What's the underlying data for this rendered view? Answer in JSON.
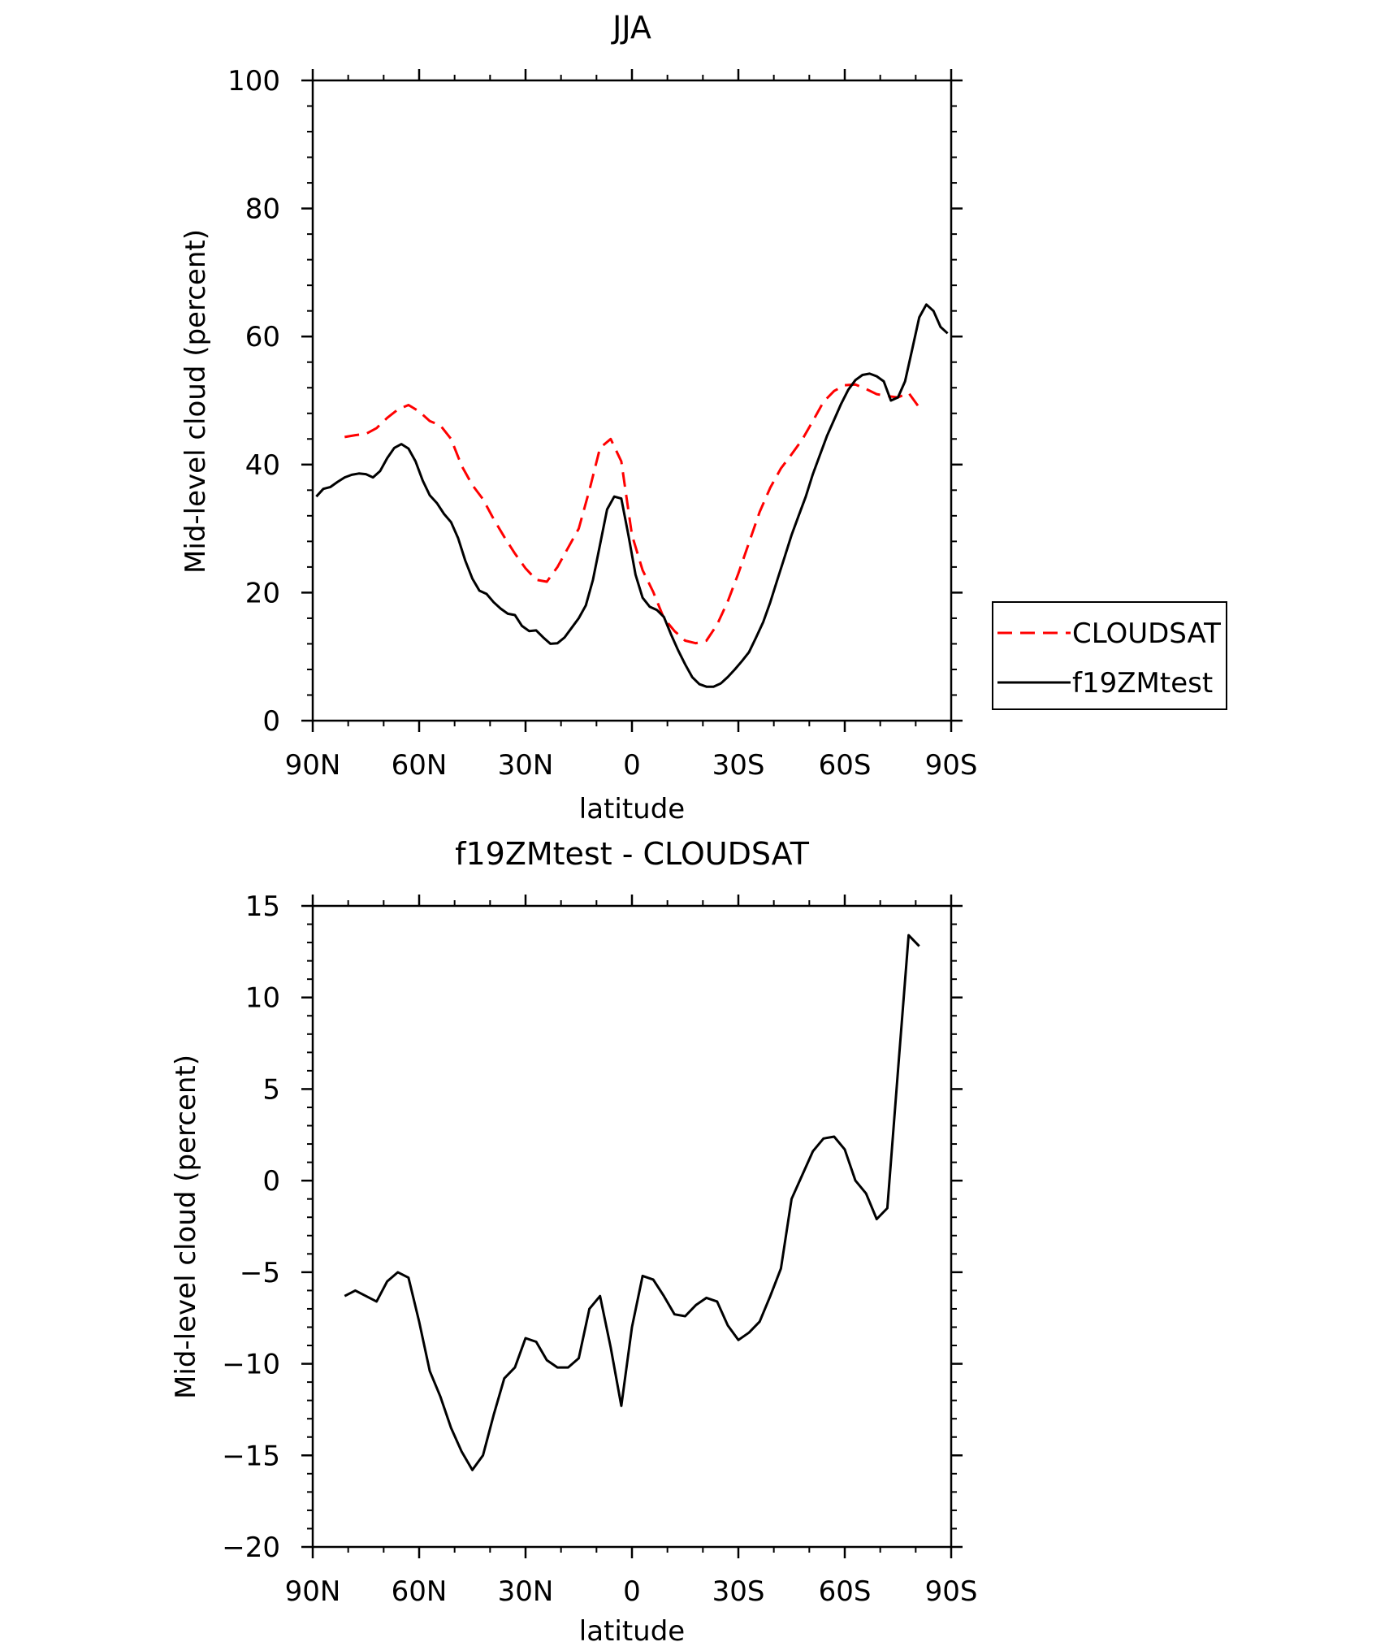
{
  "chart_data": [
    {
      "type": "line",
      "title": "JJA",
      "xlabel": "latitude",
      "ylabel": "Mid-level cloud (percent)",
      "xlim": [
        90,
        -90
      ],
      "ylim": [
        0,
        100
      ],
      "x_tick_values": [
        90,
        60,
        30,
        0,
        -30,
        -60,
        -90
      ],
      "x_tick_labels": [
        "90N",
        "60N",
        "30N",
        "0",
        "30S",
        "60S",
        "90S"
      ],
      "y_tick_values": [
        0,
        20,
        40,
        60,
        80,
        100
      ],
      "y_tick_labels": [
        "0",
        "20",
        "40",
        "60",
        "80",
        "100"
      ],
      "legend_position": "right",
      "series": [
        {
          "name": "CLOUDSAT",
          "color": "#ff0000",
          "style": "dashed",
          "x": [
            81,
            78,
            75,
            72,
            69,
            66,
            63,
            60,
            57,
            54,
            51,
            48,
            45,
            42,
            39,
            36,
            33,
            30,
            27,
            24,
            21,
            18,
            15,
            12,
            9,
            6,
            3,
            0,
            -3,
            -6,
            -9,
            -12,
            -15,
            -18,
            -21,
            -24,
            -27,
            -30,
            -33,
            -36,
            -39,
            -42,
            -45,
            -48,
            -51,
            -54,
            -57,
            -60,
            -63,
            -66,
            -69,
            -72,
            -75,
            -78,
            -81
          ],
          "y": [
            44.3,
            44.6,
            44.8,
            45.7,
            47.3,
            48.6,
            49.3,
            48.3,
            46.8,
            46.1,
            44.0,
            39.8,
            36.8,
            34.6,
            31.5,
            28.7,
            26.1,
            23.8,
            22.0,
            21.7,
            24.0,
            27.0,
            30.0,
            36.0,
            42.6,
            44.0,
            40.5,
            29.0,
            23.5,
            20.1,
            16.0,
            14.0,
            12.5,
            12.1,
            12.5,
            15.0,
            18.6,
            23.0,
            27.8,
            32.6,
            36.4,
            39.4,
            41.6,
            43.9,
            46.8,
            49.8,
            51.5,
            52.4,
            52.5,
            51.8,
            51.0,
            50.7,
            50.5,
            51.2,
            48.9
          ]
        },
        {
          "name": "f19ZMtest",
          "color": "#000000",
          "style": "solid",
          "x": [
            89,
            87,
            85,
            83,
            81,
            79,
            77,
            75,
            73,
            71,
            69,
            67,
            65,
            63,
            61,
            59,
            57,
            55,
            53,
            51,
            49,
            47,
            45,
            43,
            41,
            39,
            37,
            35,
            33,
            31,
            29,
            27,
            25,
            23,
            21,
            19,
            17,
            15,
            13,
            11,
            9,
            7,
            5,
            3,
            1,
            -1,
            -3,
            -5,
            -7,
            -9,
            -11,
            -13,
            -15,
            -17,
            -19,
            -21,
            -23,
            -25,
            -27,
            -29,
            -31,
            -33,
            -35,
            -37,
            -39,
            -41,
            -43,
            -45,
            -47,
            -49,
            -51,
            -53,
            -55,
            -57,
            -59,
            -61,
            -63,
            -65,
            -67,
            -69,
            -71,
            -73,
            -75,
            -77,
            -79,
            -81,
            -83,
            -85,
            -87,
            -89
          ],
          "y": [
            35.0,
            36.2,
            36.5,
            37.3,
            38.0,
            38.4,
            38.6,
            38.5,
            38.0,
            39.0,
            41.0,
            42.6,
            43.2,
            42.5,
            40.5,
            37.5,
            35.2,
            34.0,
            32.3,
            31.0,
            28.5,
            25.0,
            22.2,
            20.3,
            19.8,
            18.5,
            17.5,
            16.7,
            16.5,
            14.8,
            14.0,
            14.1,
            13.0,
            12.0,
            12.1,
            13.0,
            14.5,
            16.0,
            18.0,
            22.0,
            27.5,
            33.0,
            35.0,
            34.7,
            29.0,
            22.8,
            19.2,
            17.8,
            17.3,
            16.2,
            13.5,
            11.0,
            8.8,
            6.8,
            5.7,
            5.3,
            5.3,
            5.8,
            6.8,
            8.0,
            9.3,
            10.7,
            13.0,
            15.4,
            18.5,
            22.0,
            25.5,
            29.0,
            32.0,
            35.0,
            38.5,
            41.5,
            44.5,
            47.0,
            49.5,
            51.7,
            53.2,
            54.0,
            54.2,
            53.8,
            53.0,
            50.0,
            50.5,
            53.0,
            58.0,
            63.0,
            65.0,
            64.0,
            61.5,
            60.5
          ]
        }
      ]
    },
    {
      "type": "line",
      "title": "f19ZMtest - CLOUDSAT",
      "xlabel": "latitude",
      "ylabel": "Mid-level cloud (percent)",
      "xlim": [
        90,
        -90
      ],
      "ylim": [
        -20,
        15
      ],
      "x_tick_values": [
        90,
        60,
        30,
        0,
        -30,
        -60,
        -90
      ],
      "x_tick_labels": [
        "90N",
        "60N",
        "30N",
        "0",
        "30S",
        "60S",
        "90S"
      ],
      "y_tick_values": [
        -20,
        -15,
        -10,
        -5,
        0,
        5,
        10,
        15
      ],
      "y_tick_labels": [
        "−20",
        "−15",
        "−10",
        "−5",
        "0",
        "5",
        "10",
        "15"
      ],
      "series": [
        {
          "color": "#000000",
          "style": "solid",
          "x": [
            81,
            78,
            75,
            72,
            69,
            66,
            63,
            60,
            57,
            54,
            51,
            48,
            45,
            42,
            39,
            36,
            33,
            30,
            27,
            24,
            21,
            18,
            15,
            12,
            9,
            6,
            3,
            0,
            -3,
            -6,
            -9,
            -12,
            -15,
            -18,
            -21,
            -24,
            -27,
            -30,
            -33,
            -36,
            -39,
            -42,
            -45,
            -48,
            -51,
            -54,
            -57,
            -60,
            -63,
            -66,
            -69,
            -72,
            -75,
            -78,
            -81
          ],
          "y": [
            -6.3,
            -6.0,
            -6.3,
            -6.6,
            -5.5,
            -5.0,
            -5.3,
            -7.7,
            -10.4,
            -11.8,
            -13.5,
            -14.8,
            -15.8,
            -15.0,
            -12.8,
            -10.8,
            -10.2,
            -8.6,
            -8.8,
            -9.8,
            -10.2,
            -10.2,
            -9.7,
            -7.0,
            -6.3,
            -9.1,
            -12.3,
            -8.0,
            -5.2,
            -5.4,
            -6.3,
            -7.3,
            -7.4,
            -6.8,
            -6.4,
            -6.6,
            -7.9,
            -8.7,
            -8.3,
            -7.7,
            -6.3,
            -4.8,
            -1.0,
            0.3,
            1.6,
            2.3,
            2.4,
            1.7,
            0.0,
            -0.7,
            -2.1,
            -1.5,
            6.0,
            13.4,
            12.8
          ]
        }
      ]
    }
  ]
}
